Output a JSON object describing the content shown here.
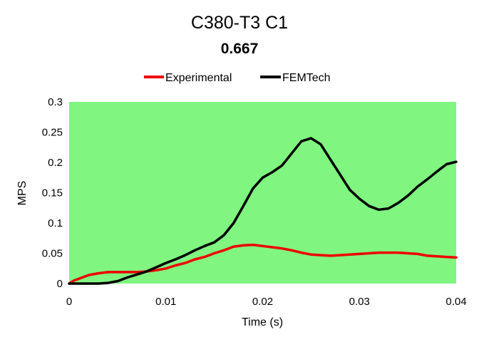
{
  "chart_data": {
    "type": "line",
    "title": "C380-T3 C1",
    "subtitle": "0.667",
    "xlabel": "Time (s)",
    "ylabel": "MPS",
    "xlim": [
      0,
      0.04
    ],
    "ylim": [
      0,
      0.3
    ],
    "x_ticks": [
      "0",
      "0.01",
      "0.02",
      "0.03",
      "0.04"
    ],
    "y_ticks": [
      "0",
      "0.05",
      "0.1",
      "0.15",
      "0.2",
      "0.25",
      "0.3"
    ],
    "grid": false,
    "legend_position": "top",
    "plot_background": "#80f580",
    "series": [
      {
        "name": "Experimental",
        "color": "#ee0000",
        "x": [
          0,
          0.0005,
          0.001,
          0.002,
          0.003,
          0.004,
          0.005,
          0.006,
          0.007,
          0.008,
          0.009,
          0.01,
          0.011,
          0.012,
          0.013,
          0.014,
          0.015,
          0.016,
          0.017,
          0.018,
          0.019,
          0.02,
          0.021,
          0.022,
          0.023,
          0.024,
          0.025,
          0.026,
          0.027,
          0.028,
          0.029,
          0.03,
          0.031,
          0.032,
          0.033,
          0.034,
          0.035,
          0.036,
          0.037,
          0.038,
          0.039,
          0.04
        ],
        "y": [
          0,
          0.005,
          0.008,
          0.014,
          0.017,
          0.019,
          0.019,
          0.019,
          0.019,
          0.02,
          0.022,
          0.025,
          0.03,
          0.034,
          0.04,
          0.044,
          0.05,
          0.055,
          0.061,
          0.063,
          0.064,
          0.062,
          0.06,
          0.058,
          0.055,
          0.051,
          0.048,
          0.047,
          0.046,
          0.047,
          0.048,
          0.049,
          0.05,
          0.051,
          0.051,
          0.051,
          0.05,
          0.049,
          0.046,
          0.045,
          0.044,
          0.043
        ]
      },
      {
        "name": "FEMTech",
        "color": "#000000",
        "x": [
          0,
          0.001,
          0.002,
          0.003,
          0.004,
          0.005,
          0.006,
          0.007,
          0.008,
          0.009,
          0.01,
          0.011,
          0.012,
          0.013,
          0.014,
          0.015,
          0.016,
          0.017,
          0.018,
          0.019,
          0.02,
          0.021,
          0.022,
          0.023,
          0.024,
          0.025,
          0.026,
          0.027,
          0.028,
          0.029,
          0.03,
          0.031,
          0.032,
          0.033,
          0.034,
          0.035,
          0.036,
          0.037,
          0.038,
          0.039,
          0.04
        ],
        "y": [
          0,
          0,
          0,
          0,
          0.001,
          0.004,
          0.01,
          0.015,
          0.02,
          0.027,
          0.034,
          0.04,
          0.047,
          0.055,
          0.062,
          0.068,
          0.08,
          0.1,
          0.128,
          0.157,
          0.175,
          0.184,
          0.195,
          0.215,
          0.235,
          0.24,
          0.23,
          0.205,
          0.18,
          0.155,
          0.14,
          0.128,
          0.122,
          0.124,
          0.133,
          0.145,
          0.16,
          0.172,
          0.185,
          0.197,
          0.201
        ]
      }
    ]
  }
}
